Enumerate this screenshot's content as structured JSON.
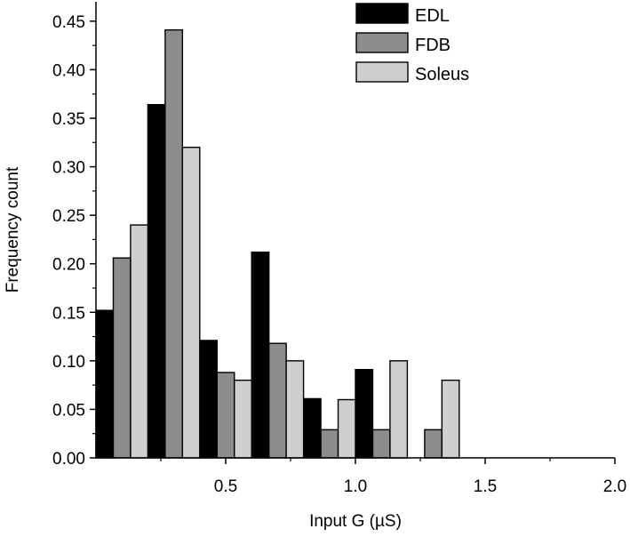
{
  "chart_data": {
    "type": "bar",
    "title": "",
    "xlabel": "Input G (µS)",
    "ylabel": "Frequency count",
    "xlim": [
      0.0,
      2.0
    ],
    "ylim": [
      0.0,
      0.47
    ],
    "bin_width": 0.2,
    "bin_starts": [
      0.0,
      0.2,
      0.4,
      0.6,
      0.8,
      1.0,
      1.2
    ],
    "x_ticks": [
      "0.5",
      "1.0",
      "1.5",
      "2.0"
    ],
    "x_tick_values": [
      0.5,
      1.0,
      1.5,
      2.0
    ],
    "y_ticks": [
      "0.00",
      "0.05",
      "0.10",
      "0.15",
      "0.20",
      "0.25",
      "0.30",
      "0.35",
      "0.40",
      "0.45"
    ],
    "y_tick_values": [
      0.0,
      0.05,
      0.1,
      0.15,
      0.2,
      0.25,
      0.3,
      0.35,
      0.4,
      0.45
    ],
    "legend_position": "top-right",
    "grid": false,
    "series": [
      {
        "name": "EDL",
        "color": "#000000",
        "values": [
          0.152,
          0.364,
          0.121,
          0.212,
          0.061,
          0.091,
          0.0
        ]
      },
      {
        "name": "FDB",
        "color": "#8c8c8c",
        "values": [
          0.206,
          0.441,
          0.088,
          0.118,
          0.029,
          0.029,
          0.029
        ]
      },
      {
        "name": "Soleus",
        "color": "#cfcfcf",
        "values": [
          0.24,
          0.32,
          0.08,
          0.1,
          0.06,
          0.1,
          0.08
        ]
      }
    ]
  }
}
